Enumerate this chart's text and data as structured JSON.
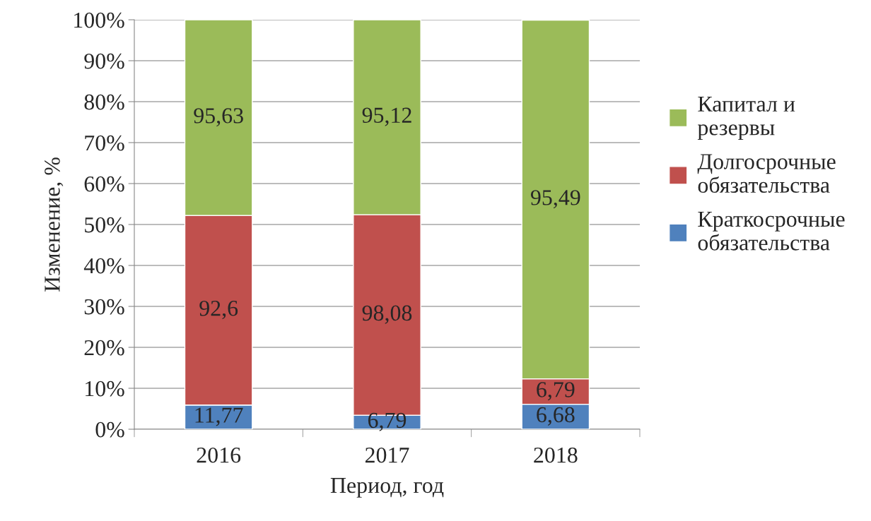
{
  "chart_data": {
    "type": "bar",
    "stacked": true,
    "xlabel": "Период, год",
    "ylabel": "Изменение, %",
    "categories": [
      "2016",
      "2017",
      "2018"
    ],
    "series": [
      {
        "name": "Краткосрочные\nобязательства",
        "color": "#4f81bd",
        "values": [
          5.9,
          3.4,
          6.1
        ]
      },
      {
        "name": "Долгосрочные\nобязательства",
        "color": "#c0504d",
        "values": [
          46.3,
          49.0,
          6.2
        ]
      },
      {
        "name": "Капитал и\nрезервы",
        "color": "#9bbb59",
        "values": [
          47.8,
          47.6,
          87.6
        ]
      }
    ],
    "annotations": [
      "11,77",
      "92,6",
      "95,63",
      "6,79",
      "98,08",
      "95,12",
      "6,68",
      "6,79",
      "95,49"
    ],
    "ylim": [
      0,
      100
    ],
    "yticks": [
      {
        "value": 0,
        "label": "0%"
      },
      {
        "value": 10,
        "label": "10%"
      },
      {
        "value": 20,
        "label": "20%"
      },
      {
        "value": 30,
        "label": "30%"
      },
      {
        "value": 40,
        "label": "40%"
      },
      {
        "value": 50,
        "label": "50%"
      },
      {
        "value": 60,
        "label": "60%"
      },
      {
        "value": 70,
        "label": "70%"
      },
      {
        "value": 80,
        "label": "80%"
      },
      {
        "value": 90,
        "label": "90%"
      },
      {
        "value": 100,
        "label": "100%"
      }
    ],
    "grid": "y",
    "legend": "right"
  }
}
